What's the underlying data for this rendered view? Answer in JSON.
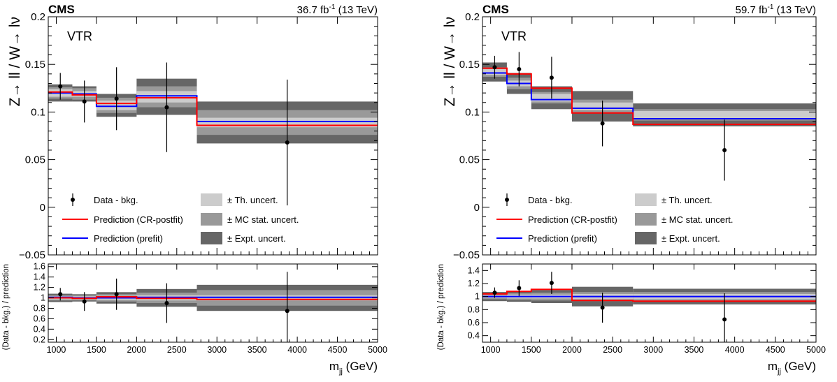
{
  "common": {
    "cms_label": "CMS",
    "category_label": "VTR",
    "ylabel_top": "Z→ ll / W→ lν",
    "ylabel_bottom": "(Data - bkg.) / prediction",
    "xlabel": "m_jj (GeV)",
    "legend": {
      "data": "Data - bkg.",
      "postfit": "Prediction (CR-postfit)",
      "prefit": "Prediction (prefit)",
      "th": "± Th. uncert.",
      "mcstat": "± MC stat. uncert.",
      "expt": "± Expt. uncert."
    },
    "colors": {
      "postfit": "#ff0000",
      "prefit": "#0000ff",
      "th_band": "#cccccc",
      "mcstat_band": "#999999",
      "expt_band": "#666666",
      "data": "#000000"
    }
  },
  "chart_data": [
    {
      "type": "line",
      "lumi": "36.7 fb^-1 (13 TeV)",
      "bin_edges": [
        900,
        1200,
        1500,
        2000,
        2750,
        5000
      ],
      "xlim": [
        900,
        5000
      ],
      "ylim": [
        -0.05,
        0.2
      ],
      "yticks": [
        -0.05,
        0,
        0.05,
        0.1,
        0.15,
        0.2
      ],
      "ytick_labels": [
        "−0.05",
        "0",
        "0.05",
        "0.1",
        "0.15",
        "0.2"
      ],
      "ratio_ylim": [
        0.15,
        1.65
      ],
      "ratio_yticks": [
        0.2,
        0.4,
        0.6,
        0.8,
        1,
        1.2,
        1.4,
        1.6
      ],
      "ratio_ytick_labels": [
        "0.2",
        "0.4",
        "0.6",
        "0.8",
        "1",
        "1.2",
        "1.4",
        "1.6"
      ],
      "xticks": [
        1000,
        1500,
        2000,
        2500,
        3000,
        3500,
        4000,
        4500,
        5000
      ],
      "xtick_labels": [
        "1000",
        "1500",
        "2000",
        "2500",
        "3000",
        "3500",
        "4000",
        "4500",
        "5000"
      ],
      "postfit": [
        0.121,
        0.118,
        0.109,
        0.115,
        0.086
      ],
      "prefit": [
        0.12,
        0.119,
        0.106,
        0.117,
        0.09
      ],
      "band_center": [
        0.12,
        0.119,
        0.107,
        0.116,
        0.089
      ],
      "th_unc": [
        0.004,
        0.003,
        0.005,
        0.006,
        0.005
      ],
      "mcstat_unc": [
        0.006,
        0.006,
        0.008,
        0.011,
        0.013
      ],
      "expt_unc": [
        0.009,
        0.008,
        0.012,
        0.019,
        0.022
      ],
      "data_x": [
        1050,
        1350,
        1750,
        2375,
        3875
      ],
      "data_y": [
        0.127,
        0.111,
        0.114,
        0.105,
        0.068
      ],
      "data_err": [
        0.014,
        0.022,
        0.033,
        0.047,
        0.066
      ],
      "ratio_y": [
        1.07,
        0.93,
        1.07,
        0.9,
        0.75
      ],
      "ratio_err": [
        0.12,
        0.18,
        0.3,
        0.38,
        0.75
      ],
      "ratio_postfit": [
        1.0,
        0.99,
        1.02,
        0.99,
        0.97
      ],
      "ratio_prefit": [
        1.01,
        1.0,
        1.0,
        1.01,
        1.01
      ],
      "ratio_th": [
        0.03,
        0.03,
        0.04,
        0.05,
        0.05
      ],
      "ratio_mcstat": [
        0.05,
        0.05,
        0.07,
        0.1,
        0.15
      ],
      "ratio_expt": [
        0.08,
        0.07,
        0.11,
        0.17,
        0.25
      ]
    },
    {
      "type": "line",
      "lumi": "59.7 fb^-1 (13 TeV)",
      "bin_edges": [
        900,
        1200,
        1500,
        2000,
        2750,
        5000
      ],
      "xlim": [
        900,
        5000
      ],
      "ylim": [
        -0.05,
        0.2
      ],
      "yticks": [
        -0.05,
        0,
        0.05,
        0.1,
        0.15,
        0.2
      ],
      "ytick_labels": [
        "−0.05",
        "0",
        "0.05",
        "0.1",
        "0.15",
        "0.2"
      ],
      "ratio_ylim": [
        0.3,
        1.5
      ],
      "ratio_yticks": [
        0.4,
        0.6,
        0.8,
        1,
        1.2,
        1.4
      ],
      "ratio_ytick_labels": [
        "0.4",
        "0.6",
        "0.8",
        "1",
        "1.2",
        "1.4"
      ],
      "xticks": [
        1000,
        1500,
        2000,
        2500,
        3000,
        3500,
        4000,
        4500,
        5000
      ],
      "xtick_labels": [
        "1000",
        "1500",
        "2000",
        "2500",
        "3000",
        "3500",
        "4000",
        "4500",
        "5000"
      ],
      "postfit": [
        0.146,
        0.14,
        0.125,
        0.099,
        0.087
      ],
      "prefit": [
        0.141,
        0.13,
        0.113,
        0.104,
        0.093
      ],
      "band_center": [
        0.142,
        0.13,
        0.115,
        0.106,
        0.097
      ],
      "th_unc": [
        0.003,
        0.003,
        0.004,
        0.004,
        0.004
      ],
      "mcstat_unc": [
        0.005,
        0.006,
        0.006,
        0.007,
        0.006
      ],
      "expt_unc": [
        0.01,
        0.011,
        0.012,
        0.016,
        0.012
      ],
      "data_x": [
        1050,
        1350,
        1750,
        2375,
        3875
      ],
      "data_y": [
        0.147,
        0.145,
        0.136,
        0.088,
        0.06
      ],
      "data_err": [
        0.012,
        0.018,
        0.022,
        0.024,
        0.032
      ],
      "ratio_y": [
        1.06,
        1.13,
        1.21,
        0.83,
        0.65
      ],
      "ratio_err": [
        0.08,
        0.12,
        0.17,
        0.23,
        0.4
      ],
      "ratio_postfit": [
        1.04,
        1.08,
        1.11,
        0.94,
        0.93
      ],
      "ratio_prefit": [
        1.0,
        1.0,
        1.0,
        1.0,
        1.0
      ],
      "ratio_th": [
        0.02,
        0.03,
        0.03,
        0.04,
        0.04
      ],
      "ratio_mcstat": [
        0.04,
        0.05,
        0.06,
        0.07,
        0.07
      ],
      "ratio_expt": [
        0.07,
        0.08,
        0.1,
        0.15,
        0.12
      ]
    }
  ]
}
